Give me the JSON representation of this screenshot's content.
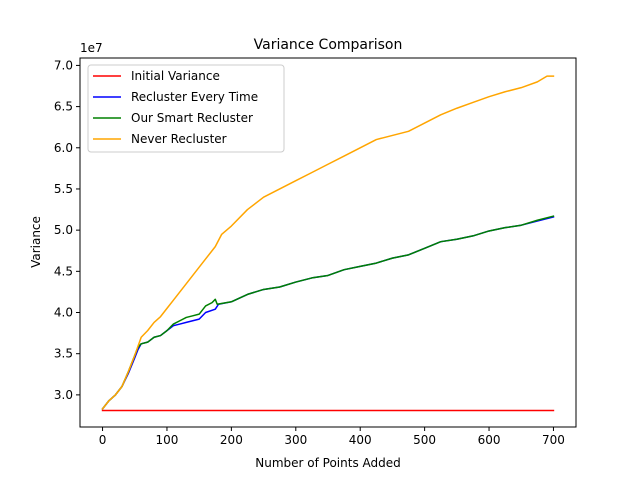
{
  "chart_data": {
    "type": "line",
    "title": "Variance Comparison",
    "xlabel": "Number of Points Added",
    "ylabel": "Variance",
    "y_scale_label": "1e7",
    "xlim": [
      -35,
      735
    ],
    "ylim": [
      26.1,
      70.9
    ],
    "x_ticks": [
      0,
      100,
      200,
      300,
      400,
      500,
      600,
      700
    ],
    "x_tick_labels": [
      "0",
      "100",
      "200",
      "300",
      "400",
      "500",
      "600",
      "700"
    ],
    "y_ticks": [
      30,
      35,
      40,
      45,
      50,
      55,
      60,
      65,
      70
    ],
    "y_tick_labels": [
      "3.0",
      "3.5",
      "4.0",
      "4.5",
      "5.0",
      "5.5",
      "6.0",
      "6.5",
      "7.0"
    ],
    "grid": false,
    "legend_position": "upper-left",
    "series": [
      {
        "name": "Initial Variance",
        "color": "#ff0000",
        "points": [
          [
            0,
            28.1
          ],
          [
            700,
            28.1
          ]
        ]
      },
      {
        "name": "Recluster Every Time",
        "color": "#0000ff",
        "points": [
          [
            0,
            28.3
          ],
          [
            10,
            29.3
          ],
          [
            20,
            30.0
          ],
          [
            30,
            31.0
          ],
          [
            40,
            32.6
          ],
          [
            50,
            34.5
          ],
          [
            55,
            35.5
          ],
          [
            60,
            36.2
          ],
          [
            70,
            36.4
          ],
          [
            80,
            37.0
          ],
          [
            90,
            37.2
          ],
          [
            100,
            37.8
          ],
          [
            110,
            38.4
          ],
          [
            120,
            38.6
          ],
          [
            130,
            38.8
          ],
          [
            140,
            39.0
          ],
          [
            150,
            39.2
          ],
          [
            160,
            40.0
          ],
          [
            175,
            40.4
          ],
          [
            180,
            41.0
          ],
          [
            200,
            41.3
          ],
          [
            225,
            42.2
          ],
          [
            250,
            42.8
          ],
          [
            275,
            43.1
          ],
          [
            300,
            43.7
          ],
          [
            325,
            44.2
          ],
          [
            350,
            44.5
          ],
          [
            375,
            45.2
          ],
          [
            400,
            45.6
          ],
          [
            425,
            46.0
          ],
          [
            450,
            46.6
          ],
          [
            475,
            47.0
          ],
          [
            500,
            47.8
          ],
          [
            525,
            48.6
          ],
          [
            550,
            48.9
          ],
          [
            575,
            49.3
          ],
          [
            600,
            49.9
          ],
          [
            625,
            50.3
          ],
          [
            650,
            50.6
          ],
          [
            675,
            51.1
          ],
          [
            700,
            51.6
          ]
        ]
      },
      {
        "name": "Our Smart Recluster",
        "color": "#008000",
        "points": [
          [
            0,
            28.3
          ],
          [
            10,
            29.3
          ],
          [
            20,
            30.0
          ],
          [
            30,
            31.0
          ],
          [
            40,
            32.8
          ],
          [
            50,
            34.8
          ],
          [
            55,
            35.8
          ],
          [
            60,
            36.2
          ],
          [
            70,
            36.4
          ],
          [
            80,
            37.0
          ],
          [
            90,
            37.2
          ],
          [
            100,
            37.8
          ],
          [
            110,
            38.6
          ],
          [
            120,
            39.0
          ],
          [
            130,
            39.4
          ],
          [
            140,
            39.6
          ],
          [
            150,
            39.8
          ],
          [
            160,
            40.8
          ],
          [
            170,
            41.2
          ],
          [
            175,
            41.6
          ],
          [
            178,
            41.0
          ],
          [
            200,
            41.3
          ],
          [
            225,
            42.2
          ],
          [
            250,
            42.8
          ],
          [
            275,
            43.1
          ],
          [
            300,
            43.7
          ],
          [
            325,
            44.2
          ],
          [
            350,
            44.5
          ],
          [
            375,
            45.2
          ],
          [
            400,
            45.6
          ],
          [
            425,
            46.0
          ],
          [
            450,
            46.6
          ],
          [
            475,
            47.0
          ],
          [
            500,
            47.8
          ],
          [
            525,
            48.6
          ],
          [
            550,
            48.9
          ],
          [
            575,
            49.3
          ],
          [
            600,
            49.9
          ],
          [
            625,
            50.3
          ],
          [
            650,
            50.6
          ],
          [
            675,
            51.2
          ],
          [
            700,
            51.7
          ]
        ]
      },
      {
        "name": "Never Recluster",
        "color": "#ffa500",
        "points": [
          [
            0,
            28.3
          ],
          [
            10,
            29.3
          ],
          [
            20,
            30.0
          ],
          [
            30,
            31.0
          ],
          [
            40,
            32.8
          ],
          [
            50,
            34.8
          ],
          [
            60,
            37.0
          ],
          [
            70,
            37.8
          ],
          [
            80,
            38.8
          ],
          [
            90,
            39.5
          ],
          [
            100,
            40.5
          ],
          [
            110,
            41.5
          ],
          [
            120,
            42.5
          ],
          [
            130,
            43.5
          ],
          [
            140,
            44.5
          ],
          [
            150,
            45.5
          ],
          [
            160,
            46.5
          ],
          [
            175,
            48.0
          ],
          [
            185,
            49.5
          ],
          [
            200,
            50.5
          ],
          [
            225,
            52.5
          ],
          [
            250,
            54.0
          ],
          [
            275,
            55.0
          ],
          [
            300,
            56.0
          ],
          [
            325,
            57.0
          ],
          [
            350,
            58.0
          ],
          [
            375,
            59.0
          ],
          [
            400,
            60.0
          ],
          [
            425,
            61.0
          ],
          [
            450,
            61.5
          ],
          [
            475,
            62.0
          ],
          [
            500,
            63.0
          ],
          [
            525,
            64.0
          ],
          [
            550,
            64.8
          ],
          [
            575,
            65.5
          ],
          [
            600,
            66.2
          ],
          [
            625,
            66.8
          ],
          [
            650,
            67.3
          ],
          [
            675,
            68.0
          ],
          [
            690,
            68.7
          ],
          [
            700,
            68.7
          ]
        ]
      }
    ]
  }
}
